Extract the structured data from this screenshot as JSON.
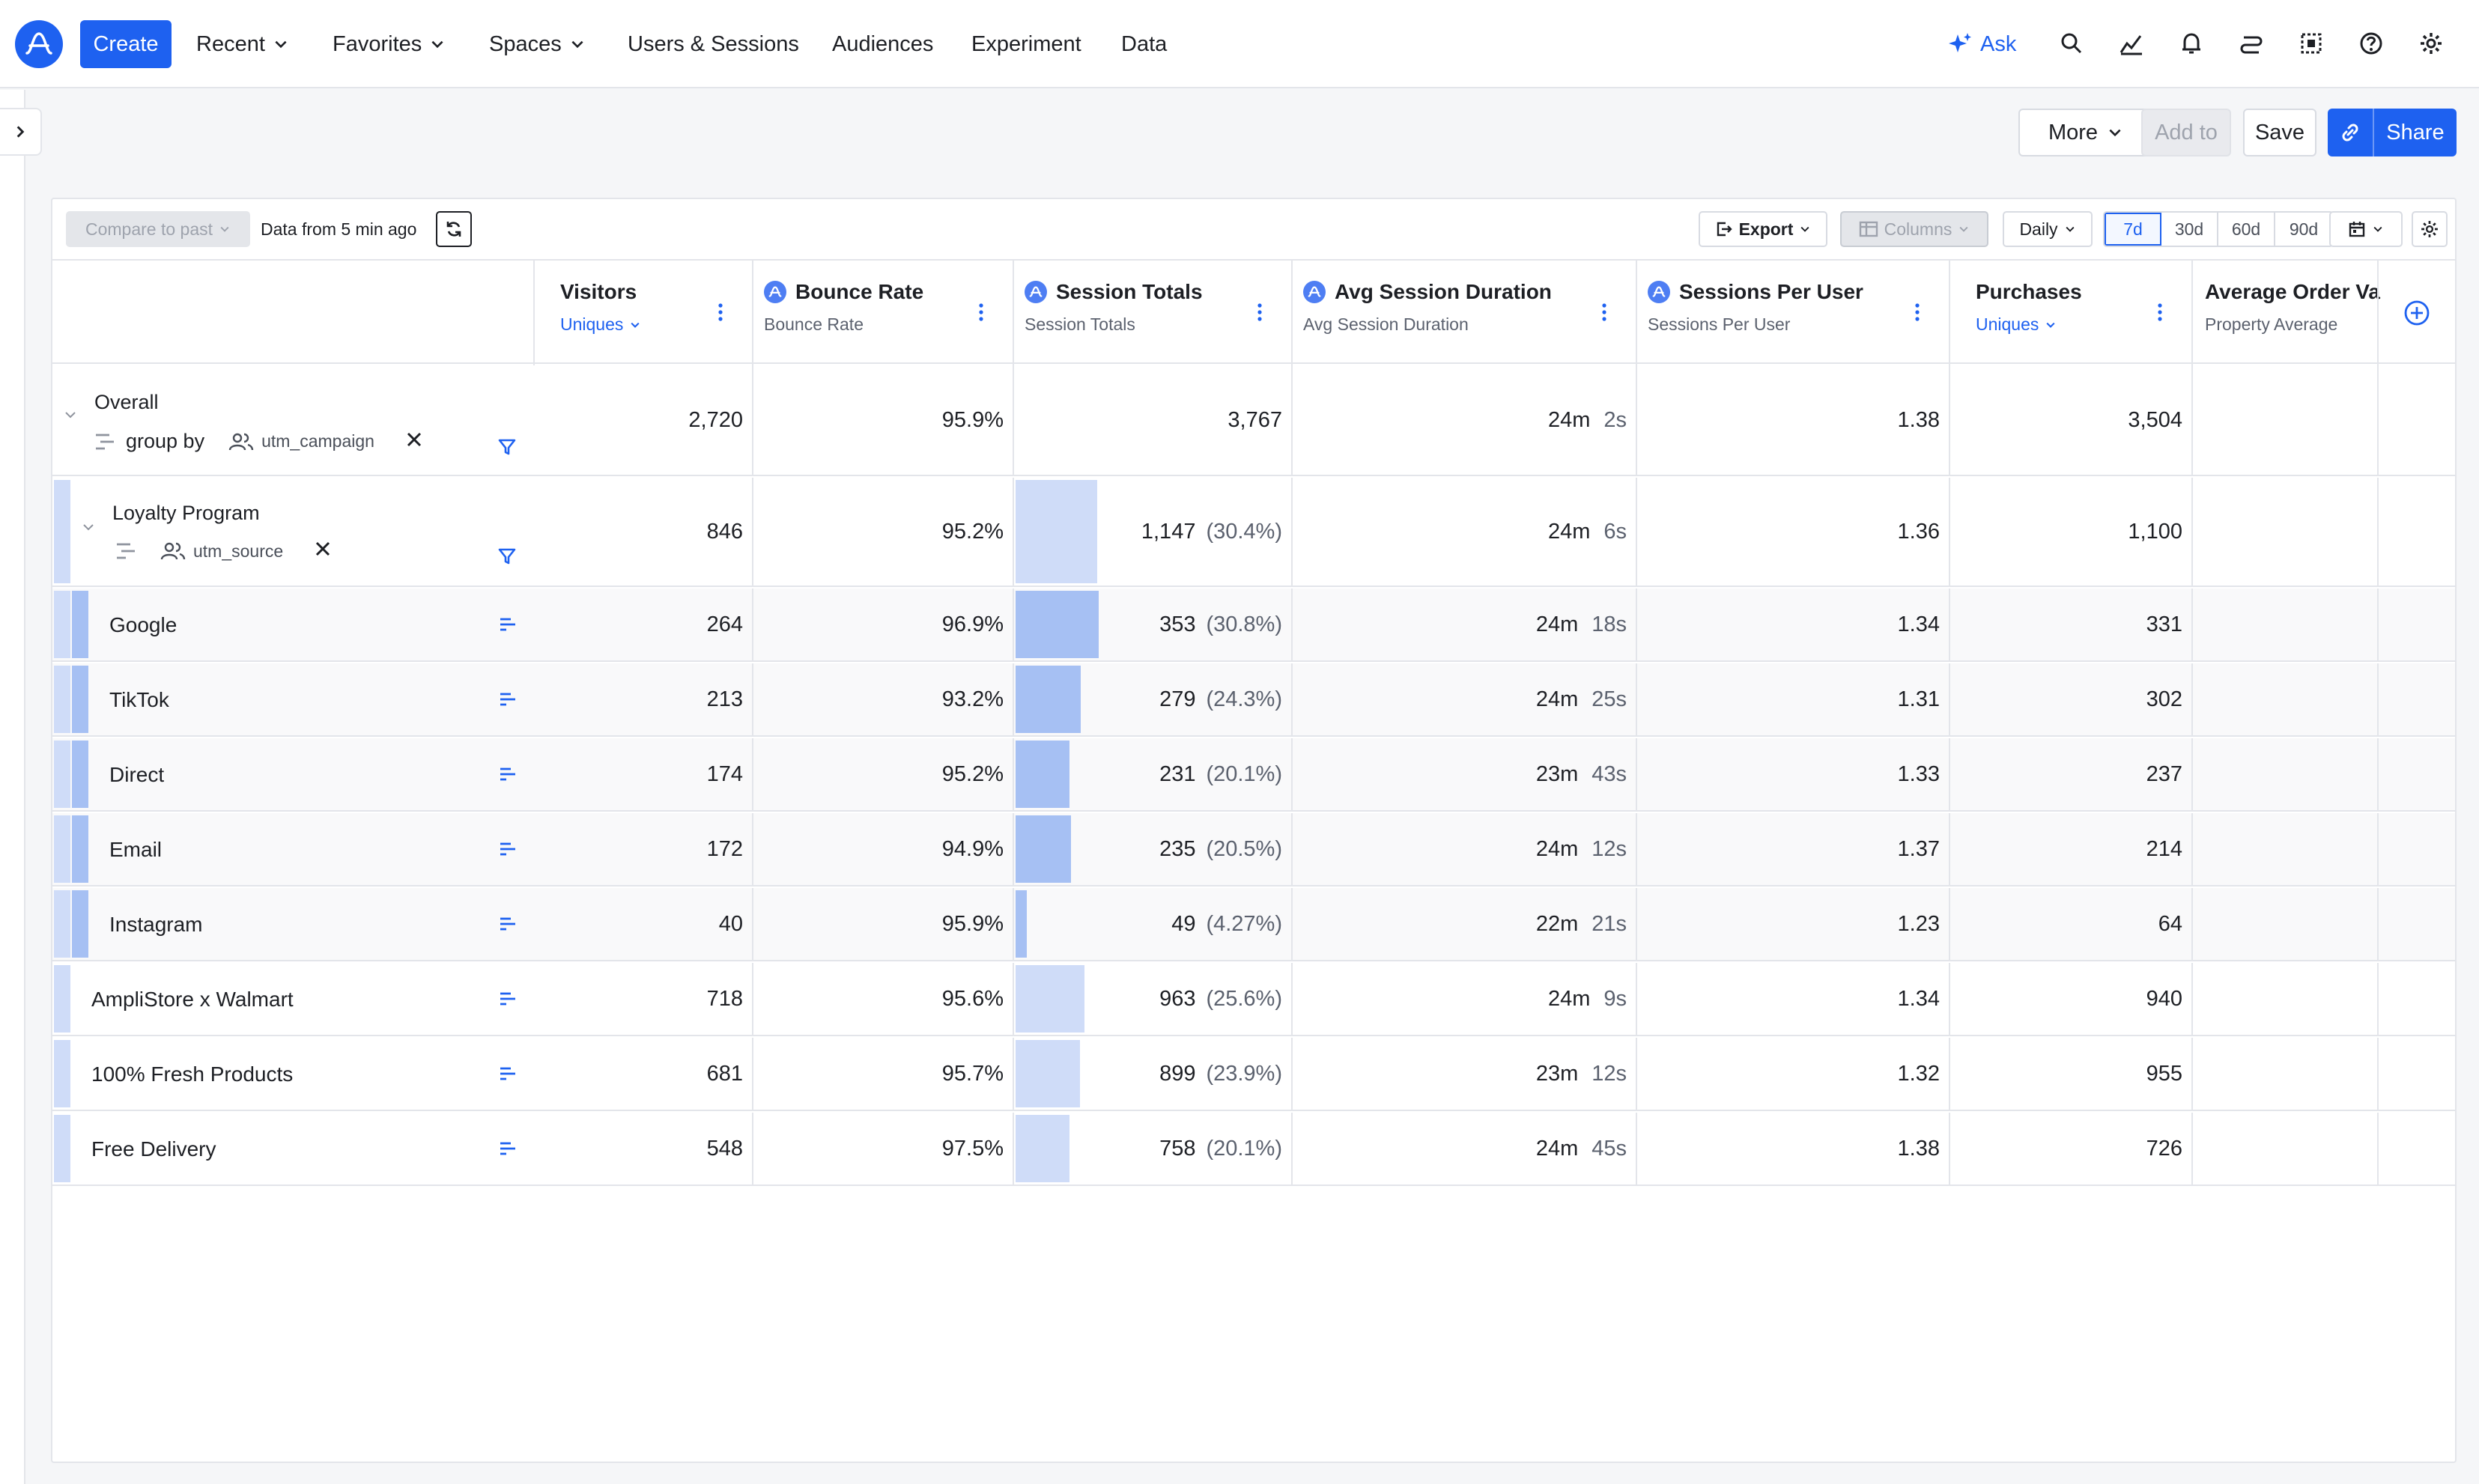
{
  "nav": {
    "create": "Create",
    "items": [
      "Recent",
      "Favorites",
      "Spaces",
      "Users & Sessions",
      "Audiences",
      "Experiment",
      "Data"
    ],
    "ask": "Ask"
  },
  "toolbar": {
    "more": "More",
    "add_to": "Add to",
    "save": "Save",
    "share": "Share"
  },
  "controls": {
    "compare": "Compare to past",
    "data_from": "Data from 5 min ago",
    "export": "Export",
    "columns": "Columns",
    "interval": "Daily",
    "ranges": [
      "7d",
      "30d",
      "60d",
      "90d"
    ],
    "active_range": "7d"
  },
  "columns": [
    {
      "title": "Visitors",
      "sub": "Uniques",
      "sub_dropdown": true,
      "icon": false
    },
    {
      "title": "Bounce Rate",
      "sub": "Bounce Rate",
      "sub_dropdown": false,
      "icon": true
    },
    {
      "title": "Session Totals",
      "sub": "Session Totals",
      "sub_dropdown": false,
      "icon": true
    },
    {
      "title": "Avg Session Duration",
      "sub": "Avg Session Duration",
      "sub_dropdown": false,
      "icon": true
    },
    {
      "title": "Sessions Per User",
      "sub": "Sessions Per User",
      "sub_dropdown": false,
      "icon": true
    },
    {
      "title": "Purchases",
      "sub": "Uniques",
      "sub_dropdown": true,
      "icon": false
    },
    {
      "title": "Average Order Va",
      "sub": "Property Average",
      "sub_dropdown": false,
      "icon": false
    }
  ],
  "overall": {
    "label": "Overall",
    "group_by": "group by",
    "property": "utm_campaign",
    "visitors": "2,720",
    "bounce": "95.9%",
    "sessions": "3,767",
    "dur_min": "24m",
    "dur_sec": "2s",
    "spu": "1.38",
    "purchases": "3,504"
  },
  "loyalty": {
    "label": "Loyalty Program",
    "property": "utm_source",
    "visitors": "846",
    "bounce": "95.2%",
    "sessions": "1,147",
    "sessions_pct": "(30.4%)",
    "share": 0.304,
    "dur_min": "24m",
    "dur_sec": "6s",
    "spu": "1.36",
    "purchases": "1,100"
  },
  "rows": [
    {
      "label": "Google",
      "child": true,
      "visitors": "264",
      "bounce": "96.9%",
      "sessions": "353",
      "sessions_pct": "(30.8%)",
      "share": 0.308,
      "dur_min": "24m",
      "dur_sec": "18s",
      "spu": "1.34",
      "purchases": "331"
    },
    {
      "label": "TikTok",
      "child": true,
      "visitors": "213",
      "bounce": "93.2%",
      "sessions": "279",
      "sessions_pct": "(24.3%)",
      "share": 0.243,
      "dur_min": "24m",
      "dur_sec": "25s",
      "spu": "1.31",
      "purchases": "302"
    },
    {
      "label": "Direct",
      "child": true,
      "visitors": "174",
      "bounce": "95.2%",
      "sessions": "231",
      "sessions_pct": "(20.1%)",
      "share": 0.201,
      "dur_min": "23m",
      "dur_sec": "43s",
      "spu": "1.33",
      "purchases": "237"
    },
    {
      "label": "Email",
      "child": true,
      "visitors": "172",
      "bounce": "94.9%",
      "sessions": "235",
      "sessions_pct": "(20.5%)",
      "share": 0.205,
      "dur_min": "24m",
      "dur_sec": "12s",
      "spu": "1.37",
      "purchases": "214"
    },
    {
      "label": "Instagram",
      "child": true,
      "visitors": "40",
      "bounce": "95.9%",
      "sessions": "49",
      "sessions_pct": "(4.27%)",
      "share": 0.0427,
      "dur_min": "22m",
      "dur_sec": "21s",
      "spu": "1.23",
      "purchases": "64"
    },
    {
      "label": "AmpliStore x Walmart",
      "child": false,
      "visitors": "718",
      "bounce": "95.6%",
      "sessions": "963",
      "sessions_pct": "(25.6%)",
      "share": 0.256,
      "dur_min": "24m",
      "dur_sec": "9s",
      "spu": "1.34",
      "purchases": "940"
    },
    {
      "label": "100% Fresh Products",
      "child": false,
      "visitors": "681",
      "bounce": "95.7%",
      "sessions": "899",
      "sessions_pct": "(23.9%)",
      "share": 0.239,
      "dur_min": "23m",
      "dur_sec": "12s",
      "spu": "1.32",
      "purchases": "955"
    },
    {
      "label": "Free Delivery",
      "child": false,
      "visitors": "548",
      "bounce": "97.5%",
      "sessions": "758",
      "sessions_pct": "(20.1%)",
      "share": 0.201,
      "dur_min": "24m",
      "dur_sec": "45s",
      "spu": "1.38",
      "purchases": "726"
    }
  ],
  "colors": {
    "accent": "#1e61f0",
    "bar_light": "#cfdcf8",
    "bar_dark": "#a6c0f3",
    "segment_bar": "#a6c0f3"
  }
}
